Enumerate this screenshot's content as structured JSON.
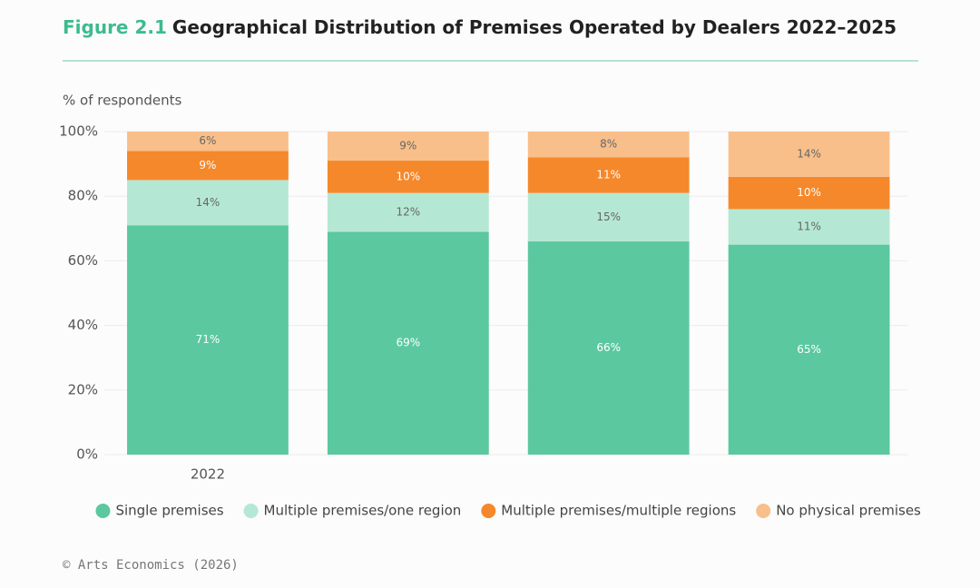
{
  "chart_data": {
    "type": "stacked_bar",
    "figure_label": "Figure 2.1",
    "title": "Geographical Distribution of Premises Operated by Dealers 2022–2025",
    "y_label": "% of respondents",
    "footer": "© Arts Economics (2026)",
    "categories": [
      "2022",
      null,
      null,
      null
    ],
    "series": [
      {
        "name": "Single premises",
        "color": "#5bc8a0",
        "values": [
          71,
          69,
          66,
          65
        ],
        "value_labels": [
          "71%",
          "69%",
          "66%",
          "65%"
        ]
      },
      {
        "name": "Multiple premises/one region",
        "color": "#b5e8d4",
        "values": [
          14,
          12,
          15,
          11
        ],
        "value_labels": [
          "14%",
          "12%",
          "15%",
          "11%"
        ]
      },
      {
        "name": "Multiple premises/multiple regions",
        "color": "#f5882a",
        "values": [
          9,
          10,
          11,
          10
        ],
        "value_labels": [
          "9%",
          "10%",
          "11%",
          "10%"
        ]
      },
      {
        "name": "No physical premises",
        "color": "#f9bf8a",
        "values": [
          6,
          9,
          8,
          14
        ],
        "value_labels": [
          "6%",
          "9%",
          "8%",
          "14%"
        ]
      }
    ],
    "ylim": [
      0,
      100
    ],
    "yticks": [
      {
        "value": 0,
        "label": "0%"
      },
      {
        "value": 20,
        "label": "20%"
      },
      {
        "value": 40,
        "label": "40%"
      },
      {
        "value": 60,
        "label": "60%"
      },
      {
        "value": 80,
        "label": "80%"
      },
      {
        "value": 100,
        "label": "100%"
      }
    ],
    "grid": true,
    "legend": "bottom"
  }
}
